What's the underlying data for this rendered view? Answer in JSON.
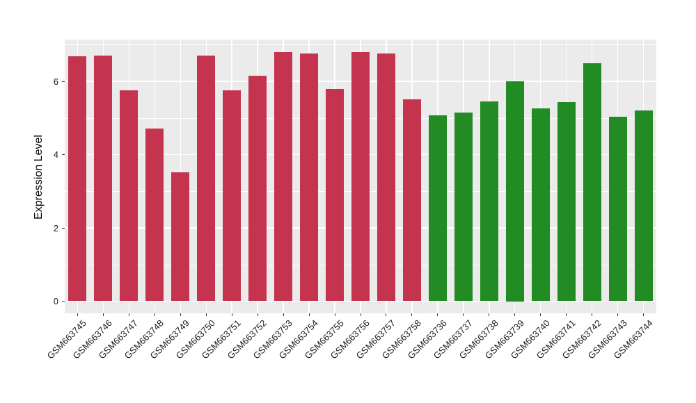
{
  "chart_data": {
    "type": "bar",
    "title": "",
    "xlabel": "",
    "ylabel": "Expression Level",
    "ylim": [
      -0.32,
      7.13
    ],
    "yticks": [
      0,
      2,
      4,
      6
    ],
    "yminor": [
      1,
      3,
      5,
      7
    ],
    "grid": "on",
    "legend_position": "none",
    "categories": [
      "GSM663745",
      "GSM663746",
      "GSM663747",
      "GSM663748",
      "GSM663749",
      "GSM663750",
      "GSM663751",
      "GSM663752",
      "GSM663753",
      "GSM663754",
      "GSM663755",
      "GSM663756",
      "GSM663757",
      "GSM663758",
      "GSM663736",
      "GSM663737",
      "GSM663738",
      "GSM663739",
      "GSM663740",
      "GSM663741",
      "GSM663742",
      "GSM663743",
      "GSM663744"
    ],
    "values": [
      6.69,
      6.71,
      5.76,
      4.71,
      3.51,
      6.71,
      5.76,
      6.15,
      6.8,
      6.76,
      5.8,
      6.8,
      6.76,
      5.51,
      5.08,
      5.15,
      5.45,
      6.0,
      5.26,
      5.43,
      6.49,
      5.04,
      5.21
    ],
    "groups": [
      "group1",
      "group1",
      "group1",
      "group1",
      "group1",
      "group1",
      "group1",
      "group1",
      "group1",
      "group1",
      "group1",
      "group1",
      "group1",
      "group1",
      "group2",
      "group2",
      "group2",
      "group2",
      "group2",
      "group2",
      "group2",
      "group2",
      "group2"
    ],
    "group_colors": {
      "group1": "#C4344F",
      "group2": "#238B23"
    },
    "panel_bg": "#EBEBEB",
    "grid_color": "#FFFFFF",
    "axis_text_color": "#1a1a1a"
  }
}
